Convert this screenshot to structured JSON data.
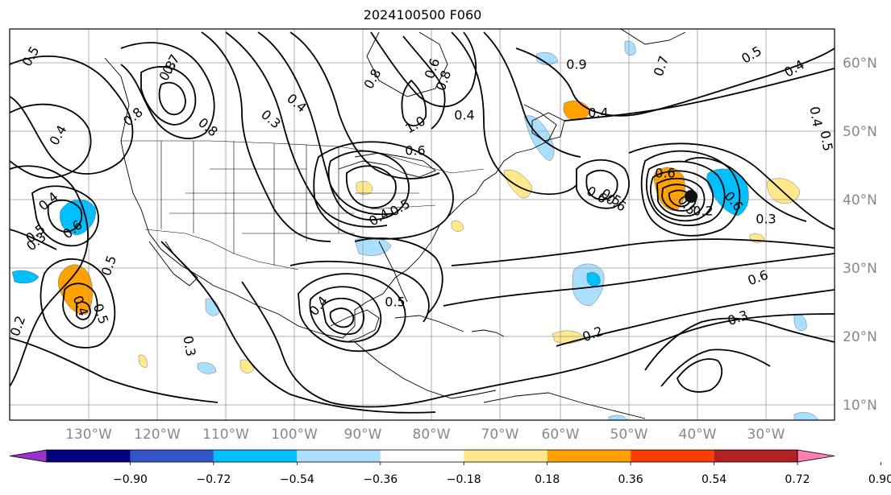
{
  "title": "2024100500 F060",
  "lon_labels": [
    "130°W",
    "120°W",
    "110°W",
    "100°W",
    "90°W",
    "80°W",
    "70°W",
    "60°W",
    "50°W",
    "40°W",
    "30°W"
  ],
  "lat_labels": [
    "60°N",
    "50°N",
    "40°N",
    "30°N",
    "20°N",
    "10°N"
  ],
  "colorbar": {
    "ticks": [
      "−0.90",
      "−0.72",
      "−0.54",
      "−0.36",
      "−0.18",
      "0.18",
      "0.36",
      "0.54",
      "0.72",
      "0.90"
    ],
    "colors": [
      "#9933cc",
      "#000080",
      "#3355cc",
      "#00bfff",
      "#aadfff",
      "#ffffff",
      "#ffe98c",
      "#ffa200",
      "#ff3d00",
      "#b22222",
      "#ff80b0"
    ]
  },
  "contour_labels": [
    "0.5",
    "0.4",
    "0.8",
    "0.3",
    "0.4",
    "0.8",
    "0.5",
    "0.4",
    "0.6",
    "0.7",
    "0.8",
    "1.0",
    "0.6",
    "0.4",
    "0.5",
    "0.8",
    "0.4",
    "0.6",
    "0.8",
    "0.9",
    "0.7",
    "0.5",
    "0.6",
    "0.6",
    "0.6",
    "0.5",
    "0.4",
    "0.6",
    "0.2",
    "0.3",
    "0.4",
    "0.5",
    "0.4",
    "0.5",
    "0.3",
    "0.2",
    "0.4",
    "0.5",
    "0.5",
    "0.3",
    "0.4",
    "0.5",
    "0.6",
    "0.3",
    "0.2"
  ],
  "fill_colors": {
    "blue": "#00bfff",
    "lightblue": "#aadfff",
    "yellow": "#ffe98c",
    "orange": "#ffa200"
  }
}
